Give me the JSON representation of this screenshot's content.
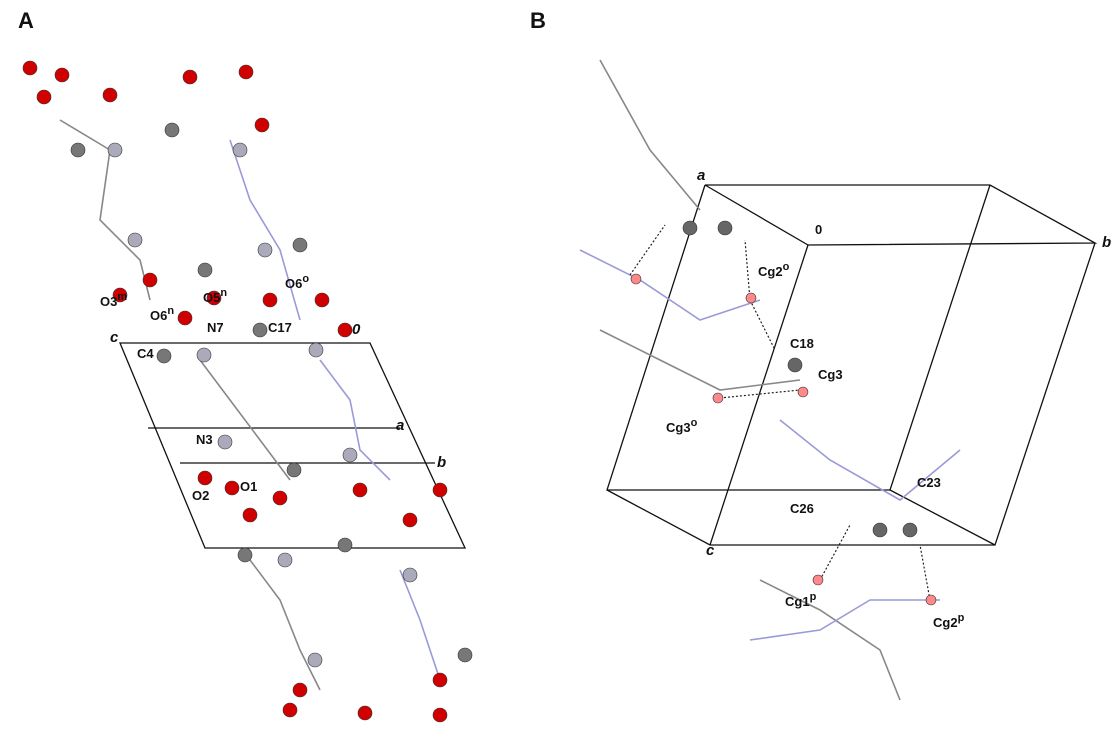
{
  "panels": [
    {
      "label": "A",
      "annotations": [
        {
          "text": "O3",
          "sup": "m"
        },
        {
          "text": "O5",
          "sup": "n"
        },
        {
          "text": "O6",
          "sup": "n"
        },
        {
          "text": "O6",
          "sup": "o"
        },
        {
          "text": "N7"
        },
        {
          "text": "C17"
        },
        {
          "text": "0"
        },
        {
          "text": "c"
        },
        {
          "text": "C4"
        },
        {
          "text": "a"
        },
        {
          "text": "N3"
        },
        {
          "text": "b"
        },
        {
          "text": "O1"
        },
        {
          "text": "O2"
        }
      ]
    },
    {
      "label": "B",
      "annotations": [
        {
          "text": "a"
        },
        {
          "text": "0"
        },
        {
          "text": "b"
        },
        {
          "text": "Cg2",
          "sup": "o"
        },
        {
          "text": "C18"
        },
        {
          "text": "Cg3"
        },
        {
          "text": "Cg3",
          "sup": "o"
        },
        {
          "text": "C26"
        },
        {
          "text": "C23"
        },
        {
          "text": "c"
        },
        {
          "text": "Cg1",
          "sup": "p"
        },
        {
          "text": "Cg2",
          "sup": "p"
        }
      ]
    }
  ]
}
